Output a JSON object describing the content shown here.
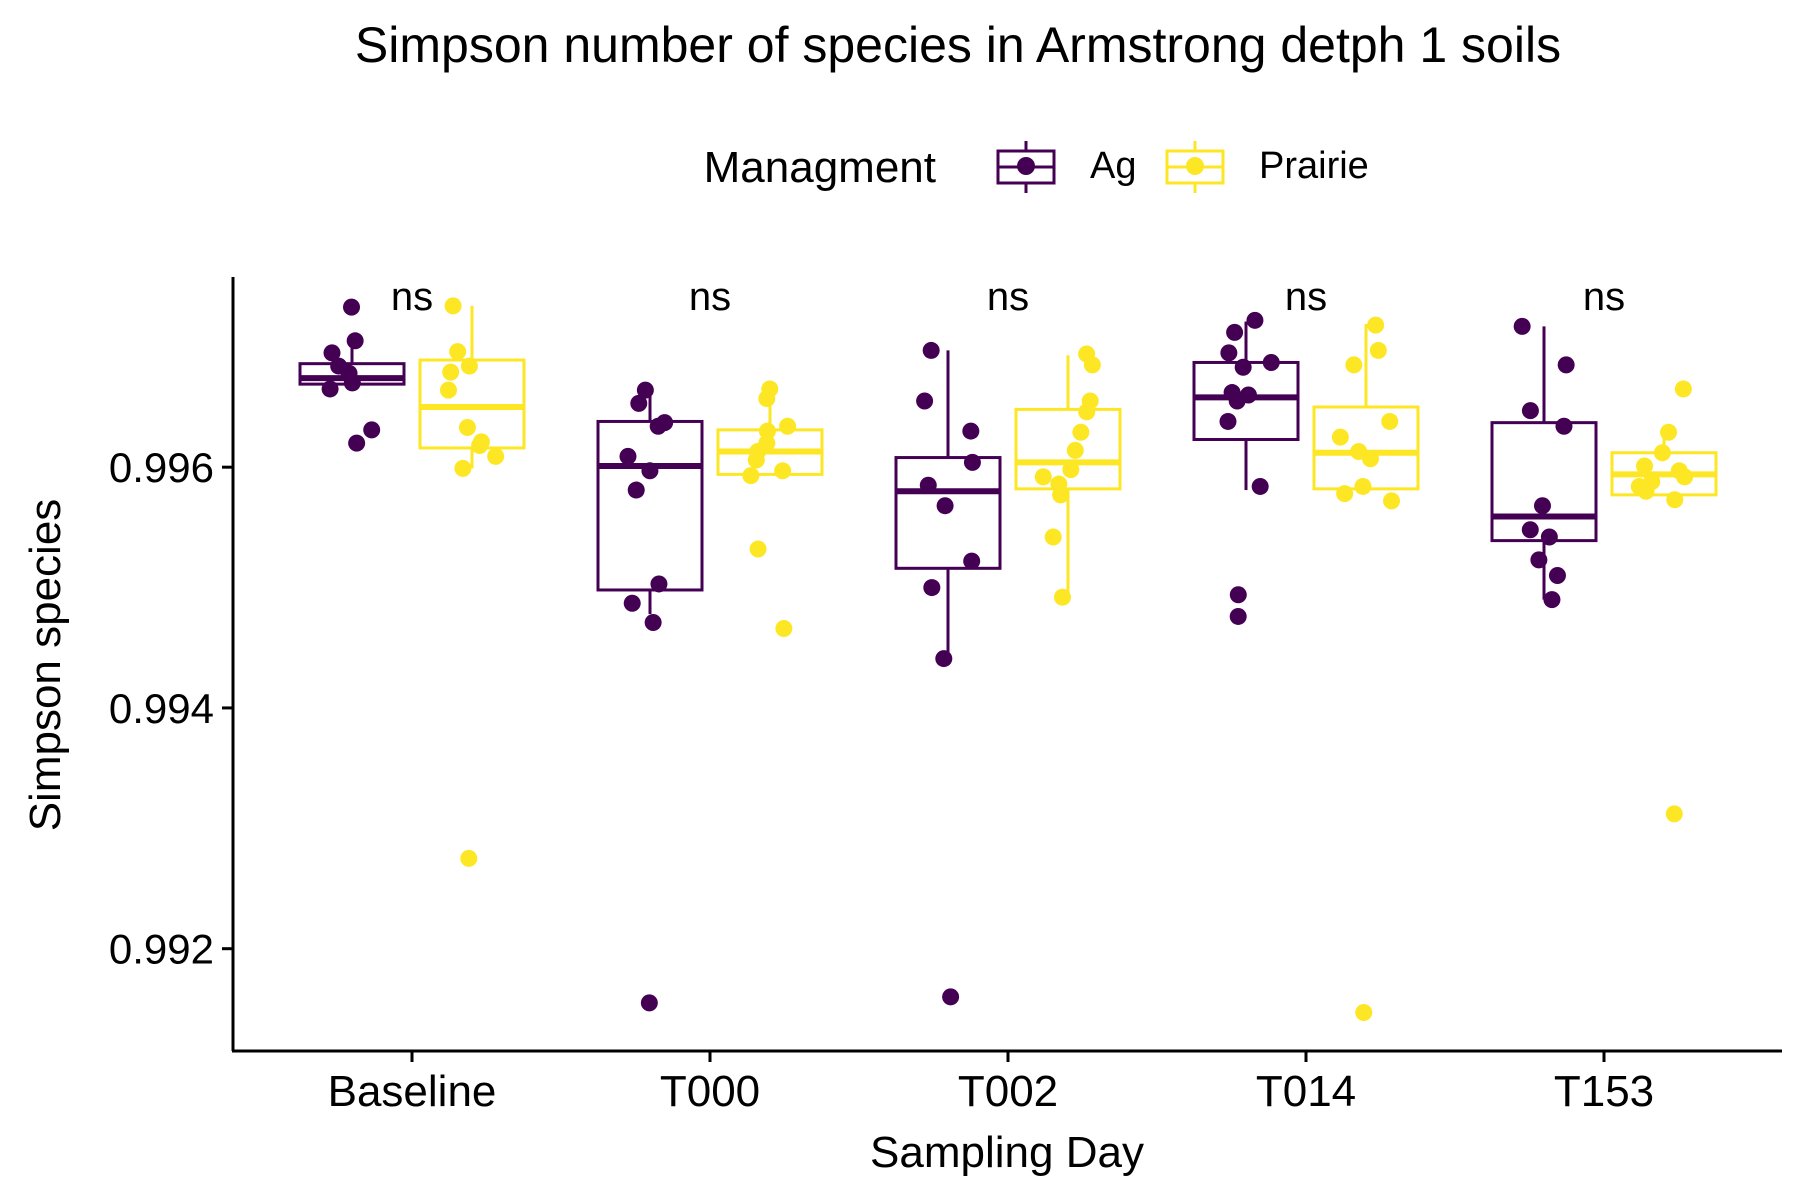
{
  "chart_data": {
    "type": "box",
    "title": "Simpson number of species in Armstrong detph 1 soils",
    "xlabel": "Sampling Day",
    "ylabel": "Simpson species",
    "legend": {
      "title": "Managment",
      "position": "top"
    },
    "categories": [
      "Baseline",
      "T000",
      "T002",
      "T014",
      "T153"
    ],
    "significance_labels": [
      "ns",
      "ns",
      "ns",
      "ns",
      "ns"
    ],
    "ylim": [
      0.99115,
      0.99758
    ],
    "yticks": [
      0.992,
      0.994,
      0.996
    ],
    "ytick_labels": [
      "0.992",
      "0.994",
      "0.996"
    ],
    "grid": false,
    "series": [
      {
        "name": "Ag",
        "color": "#440154",
        "boxes": [
          {
            "q1": 0.99669,
            "median": 0.99674,
            "q3": 0.99686,
            "whisker_low": 0.99666,
            "whisker_high": 0.99701
          },
          {
            "q1": 0.99498,
            "median": 0.99601,
            "q3": 0.99638,
            "whisker_low": 0.99478,
            "whisker_high": 0.99663
          },
          {
            "q1": 0.99516,
            "median": 0.9958,
            "q3": 0.99608,
            "whisker_low": 0.99441,
            "whisker_high": 0.99697
          },
          {
            "q1": 0.99623,
            "median": 0.99658,
            "q3": 0.99687,
            "whisker_low": 0.99581,
            "whisker_high": 0.99721
          },
          {
            "q1": 0.99539,
            "median": 0.99559,
            "q3": 0.99637,
            "whisker_low": 0.9949,
            "whisker_high": 0.99717
          }
        ],
        "points": [
          [
            0.99733,
            0.99705,
            0.99695,
            0.99684,
            0.99678,
            0.9967,
            0.99665,
            0.99631,
            0.9962
          ],
          [
            0.99664,
            0.99653,
            0.99637,
            0.99634,
            0.99609,
            0.99597,
            0.99581,
            0.99503,
            0.99487,
            0.99471,
            0.99155
          ],
          [
            0.99697,
            0.99655,
            0.9963,
            0.99604,
            0.99585,
            0.99568,
            0.99522,
            0.995,
            0.99441,
            0.9916
          ],
          [
            0.99722,
            0.99712,
            0.99695,
            0.99687,
            0.99683,
            0.99662,
            0.9966,
            0.99655,
            0.99638,
            0.99584,
            0.99494,
            0.99476
          ],
          [
            0.99717,
            0.99685,
            0.99647,
            0.99634,
            0.99568,
            0.99548,
            0.99542,
            0.99523,
            0.9951,
            0.9949
          ]
        ]
      },
      {
        "name": "Prairie",
        "color": "#FDE725",
        "boxes": [
          {
            "q1": 0.99616,
            "median": 0.9965,
            "q3": 0.99689,
            "whisker_low": 0.99599,
            "whisker_high": 0.99734
          },
          {
            "q1": 0.99594,
            "median": 0.99613,
            "q3": 0.99631,
            "whisker_low": 0.99594,
            "whisker_high": 0.99662
          },
          {
            "q1": 0.99582,
            "median": 0.99604,
            "q3": 0.99648,
            "whisker_low": 0.99492,
            "whisker_high": 0.99693
          },
          {
            "q1": 0.99582,
            "median": 0.99612,
            "q3": 0.9965,
            "whisker_low": 0.99582,
            "whisker_high": 0.99719
          },
          {
            "q1": 0.99577,
            "median": 0.99594,
            "q3": 0.99612,
            "whisker_low": 0.99577,
            "whisker_high": 0.99625
          }
        ],
        "points": [
          [
            0.99734,
            0.99696,
            0.99684,
            0.99679,
            0.99664,
            0.99633,
            0.99621,
            0.99618,
            0.99609,
            0.99599,
            0.99275
          ],
          [
            0.99665,
            0.99657,
            0.99634,
            0.9963,
            0.9962,
            0.99613,
            0.99606,
            0.99597,
            0.99593,
            0.99532,
            0.99466
          ],
          [
            0.99694,
            0.99685,
            0.99655,
            0.99646,
            0.99629,
            0.99614,
            0.99598,
            0.99592,
            0.99586,
            0.99577,
            0.99542,
            0.99492
          ],
          [
            0.99718,
            0.99697,
            0.99685,
            0.99638,
            0.99625,
            0.99613,
            0.99607,
            0.99584,
            0.99578,
            0.99572,
            0.99147
          ],
          [
            0.99665,
            0.99629,
            0.99612,
            0.99601,
            0.99597,
            0.99592,
            0.99588,
            0.99584,
            0.9958,
            0.99573,
            0.99312
          ]
        ]
      }
    ]
  }
}
